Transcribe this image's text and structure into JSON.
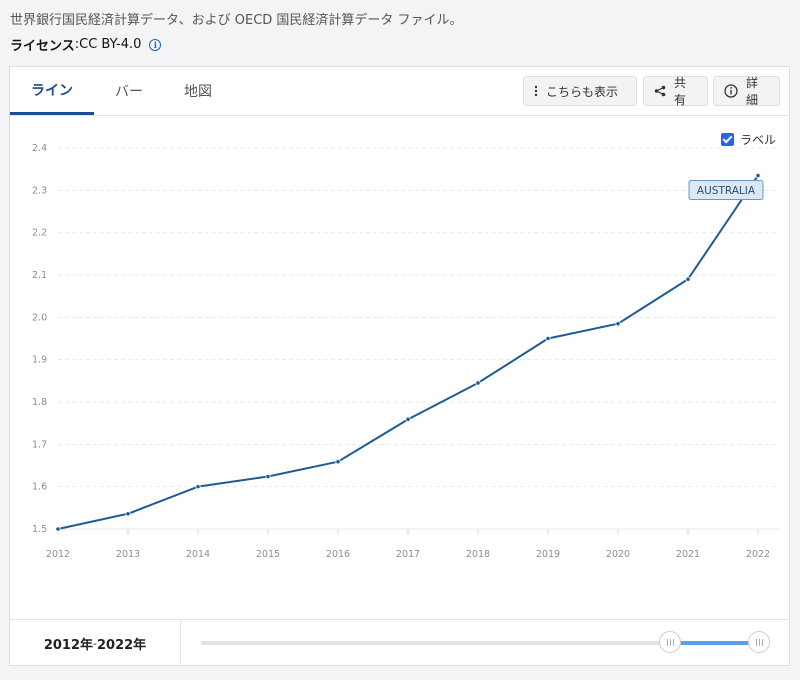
{
  "source_text": "世界銀行国民経済計算データ、および OECD 国民経済計算データ ファイル。",
  "license": {
    "label": "ライセンス",
    "value": " :CC BY-4.0"
  },
  "tabs": [
    {
      "label": "ライン",
      "active": true
    },
    {
      "label": "バー",
      "active": false
    },
    {
      "label": "地図",
      "active": false
    }
  ],
  "actions": {
    "more_label": "こちらも表示",
    "share_label": "共有",
    "details_label": "詳細"
  },
  "labels_toggle": {
    "label": "ラベル",
    "checked": true
  },
  "range": {
    "start": "2012年",
    "sep": "- ",
    "end": "2022年"
  },
  "colors": {
    "line": "#1c5b96",
    "accent": "#1a4f8b",
    "checkbox": "#2563eb",
    "slider_fill": "#5aa0e8"
  },
  "chart_data": {
    "type": "line",
    "title": "",
    "xlabel": "",
    "ylabel": "",
    "grid": true,
    "ylim": [
      1.5,
      2.4
    ],
    "yticks": [
      "1.5",
      "1.6",
      "1.7",
      "1.8",
      "1.9",
      "2.0",
      "2.1",
      "2.2",
      "2.3",
      "2.4"
    ],
    "x": [
      "2012",
      "2013",
      "2014",
      "2015",
      "2016",
      "2017",
      "2018",
      "2019",
      "2020",
      "2021",
      "2022"
    ],
    "series": [
      {
        "name": "AUSTRALIA",
        "values": [
          1.5,
          1.536,
          1.6,
          1.624,
          1.659,
          1.759,
          1.845,
          1.95,
          1.985,
          2.09,
          2.335
        ]
      }
    ]
  }
}
